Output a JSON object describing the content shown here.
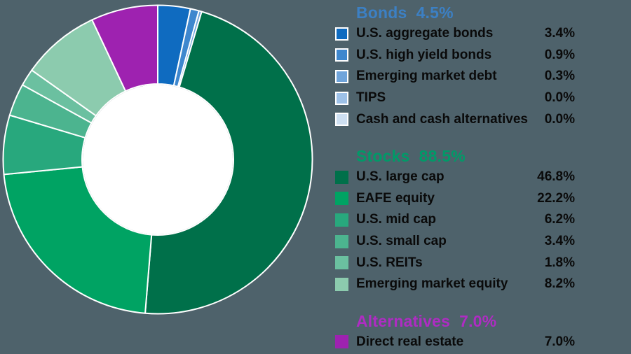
{
  "background_color": "#4E626B",
  "chart_data": {
    "type": "pie",
    "subtype": "donut",
    "title": "",
    "direction": "clockwise",
    "start_angle_deg": 0,
    "inner_radius_ratio": 0.49,
    "slice_stroke_color": "#FFFFFF",
    "hole_color": "#FFFFFF",
    "segments": [
      {
        "label": "U.S. aggregate bonds",
        "value": 3.4,
        "color": "#0F6BC0",
        "group": "Bonds"
      },
      {
        "label": "U.S. high yield bonds",
        "value": 0.9,
        "color": "#3E87CE",
        "group": "Bonds"
      },
      {
        "label": "Emerging market debt",
        "value": 0.3,
        "color": "#6FA4DB",
        "group": "Bonds"
      },
      {
        "label": "TIPS",
        "value": 0.0,
        "color": "#9DC1E8",
        "group": "Bonds"
      },
      {
        "label": "Cash and cash alternatives",
        "value": 0.0,
        "color": "#CEE0F2",
        "group": "Bonds"
      },
      {
        "label": "U.S. large cap",
        "value": 46.8,
        "color": "#00704A",
        "group": "Stocks"
      },
      {
        "label": "EAFE equity",
        "value": 22.2,
        "color": "#00A363",
        "group": "Stocks"
      },
      {
        "label": "U.S. mid cap",
        "value": 6.2,
        "color": "#28A87D",
        "group": "Stocks"
      },
      {
        "label": "U.S. small cap",
        "value": 3.4,
        "color": "#4CB48F",
        "group": "Stocks"
      },
      {
        "label": "U.S. REITs",
        "value": 1.8,
        "color": "#6BC0A0",
        "group": "Stocks"
      },
      {
        "label": "Emerging market equity",
        "value": 8.2,
        "color": "#8CCBAE",
        "group": "Stocks"
      },
      {
        "label": "Direct real estate",
        "value": 7.0,
        "color": "#9E22B0",
        "group": "Alternatives"
      }
    ]
  },
  "legend": {
    "sections": [
      {
        "title": "Bonds",
        "total": "4.5%",
        "title_color": "#3C80C4",
        "swatch_border": true,
        "items": [
          {
            "label": "U.S. aggregate bonds",
            "value": "3.4%",
            "color": "#0F6BC0"
          },
          {
            "label": "U.S. high yield bonds",
            "value": "0.9%",
            "color": "#3E87CE"
          },
          {
            "label": "Emerging market debt",
            "value": "0.3%",
            "color": "#6FA4DB"
          },
          {
            "label": "TIPS",
            "value": "0.0%",
            "color": "#9DC1E8"
          },
          {
            "label": "Cash and cash alternatives",
            "value": "0.0%",
            "color": "#CEE0F2"
          }
        ]
      },
      {
        "title": "Stocks",
        "total": "88.5%",
        "title_color": "#009A68",
        "swatch_border": false,
        "items": [
          {
            "label": "U.S. large cap",
            "value": "46.8%",
            "color": "#00704A"
          },
          {
            "label": "EAFE equity",
            "value": "22.2%",
            "color": "#00A363"
          },
          {
            "label": "U.S. mid cap",
            "value": "6.2%",
            "color": "#28A87D"
          },
          {
            "label": "U.S. small cap",
            "value": "3.4%",
            "color": "#4CB48F"
          },
          {
            "label": "U.S. REITs",
            "value": "1.8%",
            "color": "#6BC0A0"
          },
          {
            "label": "Emerging market equity",
            "value": "8.2%",
            "color": "#8CCBAE"
          }
        ]
      },
      {
        "title": "Alternatives",
        "total": "7.0%",
        "title_color": "#AF2CC3",
        "swatch_border": false,
        "items": [
          {
            "label": "Direct real estate",
            "value": "7.0%",
            "color": "#9E22B0"
          }
        ]
      }
    ]
  }
}
